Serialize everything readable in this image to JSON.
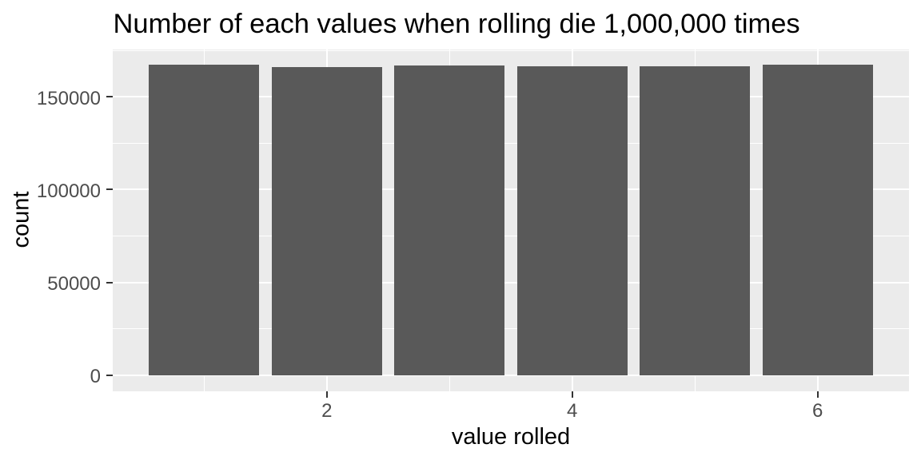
{
  "title": "Number of each values when rolling die 1,000,000 times",
  "chart_data": {
    "type": "bar",
    "title": "Number of each values when rolling die 1,000,000 times",
    "xlabel": "value rolled",
    "ylabel": "count",
    "categories": [
      1,
      2,
      3,
      4,
      5,
      6
    ],
    "values": [
      167400,
      165950,
      166750,
      166300,
      166300,
      167300
    ],
    "bar_width": 0.9,
    "xlim": [
      0.255,
      6.745
    ],
    "ylim": [
      -8600,
      175460
    ],
    "x_major_ticks": {
      "values": [
        2,
        4,
        6
      ],
      "labels": [
        "2",
        "4",
        "6"
      ]
    },
    "y_major_ticks": {
      "values": [
        0,
        50000,
        100000,
        150000
      ],
      "labels": [
        "0",
        "50000",
        "100000",
        "150000"
      ]
    },
    "x_minor_gridlines": [
      1,
      3,
      5
    ],
    "y_minor_gridlines": [
      25000,
      75000,
      125000,
      175000
    ],
    "grid": true,
    "legend": false,
    "style": "ggplot2"
  },
  "colors": {
    "background": "#FFFFFF",
    "panel_background": "#EBEBEB",
    "bar_fill": "#595959",
    "gridline_major": "#FFFFFF",
    "gridline_minor": "#FFFFFF",
    "axis_text": "#4D4D4D",
    "tick_mark": "#333333",
    "title_text": "#000000",
    "axis_title_text": "#000000"
  }
}
